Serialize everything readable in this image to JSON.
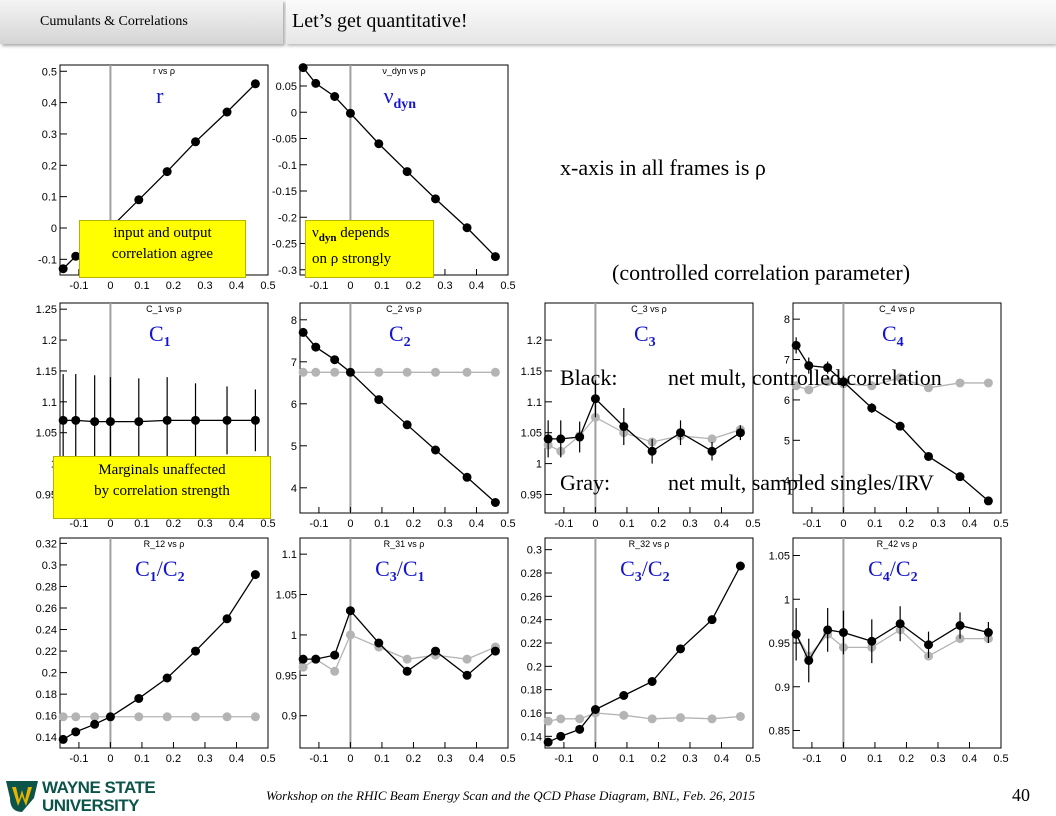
{
  "header": {
    "section": "Cumulants & Correlations",
    "title": "Let’s get quantitative!"
  },
  "notes": {
    "line1": "x-axis in all frames is ρ",
    "line2": "(controlled correlation parameter)",
    "line3_key": "Black:",
    "line3_val": "net mult, controlled correlation",
    "line4_key": "Gray:",
    "line4_val": "net mult, sampled singles/IRV"
  },
  "callouts": {
    "r_box": [
      "input and output",
      "correlation agree"
    ],
    "nu_box_l1_pre": "ν",
    "nu_box_l1_sub": "dyn",
    "nu_box_l1_post": " depends",
    "nu_box_l2": "on ρ strongly",
    "c1_box": [
      "Marginals unaffected",
      "by correlation strength"
    ]
  },
  "footer": {
    "text": "Workshop on the RHIC Beam Energy Scan and the QCD Phase Diagram, BNL, Feb. 26, 2015",
    "page": "40"
  },
  "logo": {
    "line1": "WAYNE STATE",
    "line2": "UNIVERSITY"
  },
  "colors": {
    "black_series": "#000000",
    "gray_series": "#b4b4b4",
    "label_blue": "#1515cc",
    "callout": "#ffff00"
  },
  "chart_data": [
    {
      "type": "line",
      "id": "r",
      "title": "r vs ρ",
      "label": "r",
      "xlim": [
        -0.16,
        0.5
      ],
      "ylim": [
        -0.15,
        0.52
      ],
      "xticks": [
        "-0.1",
        "0",
        "0.1",
        "0.2",
        "0.3",
        "0.4",
        "0.5"
      ],
      "yticks": [
        "-0.1",
        "0",
        "0.1",
        "0.2",
        "0.3",
        "0.4",
        "0.5"
      ],
      "series": [
        {
          "color": "black",
          "x": [
            -0.15,
            -0.11,
            -0.05,
            0,
            0.09,
            0.18,
            0.27,
            0.37,
            0.46
          ],
          "y": [
            -0.13,
            -0.09,
            -0.045,
            0.0,
            0.09,
            0.18,
            0.275,
            0.37,
            0.46
          ]
        }
      ]
    },
    {
      "type": "line",
      "id": "nu",
      "title": "ν_dyn vs ρ",
      "label": "ν",
      "label_sub": "dyn",
      "xlim": [
        -0.16,
        0.5
      ],
      "ylim": [
        -0.31,
        0.09
      ],
      "xticks": [
        "-0.1",
        "0",
        "0.1",
        "0.2",
        "0.3",
        "0.4",
        "0.5"
      ],
      "yticks": [
        "-0.3",
        "-0.25",
        "-0.2",
        "-0.15",
        "-0.1",
        "-0.05",
        "0",
        "0.05"
      ],
      "series": [
        {
          "color": "black",
          "x": [
            -0.15,
            -0.11,
            -0.05,
            0,
            0.09,
            0.18,
            0.27,
            0.37,
            0.46
          ],
          "y": [
            0.085,
            0.055,
            0.03,
            -0.002,
            -0.06,
            -0.113,
            -0.165,
            -0.22,
            -0.275
          ]
        }
      ]
    },
    {
      "type": "line",
      "id": "c1",
      "title": "C_1 vs ρ",
      "label": "C",
      "label_sub": "1",
      "xlim": [
        -0.16,
        0.5
      ],
      "ylim": [
        0.92,
        1.26
      ],
      "xticks": [
        "-0.1",
        "0",
        "0.1",
        "0.2",
        "0.3",
        "0.4",
        "0.5"
      ],
      "yticks": [
        "0.95",
        "1",
        "1.05",
        "1.1",
        "1.15",
        "1.2",
        "1.25"
      ],
      "series": [
        {
          "color": "black",
          "x": [
            -0.15,
            -0.11,
            -0.05,
            0,
            0.09,
            0.18,
            0.27,
            0.37,
            0.46
          ],
          "y": [
            1.07,
            1.07,
            1.068,
            1.068,
            1.068,
            1.07,
            1.07,
            1.07,
            1.07
          ],
          "err": [
            0.075,
            0.075,
            0.075,
            0.072,
            0.07,
            0.07,
            0.06,
            0.055,
            0.05
          ]
        }
      ]
    },
    {
      "type": "line",
      "id": "c2",
      "title": "C_2 vs ρ",
      "label": "C",
      "label_sub": "2",
      "xlim": [
        -0.16,
        0.5
      ],
      "ylim": [
        3.4,
        8.4
      ],
      "xticks": [
        "-0.1",
        "0",
        "0.1",
        "0.2",
        "0.3",
        "0.4",
        "0.5"
      ],
      "yticks": [
        "4",
        "5",
        "6",
        "7",
        "8"
      ],
      "series": [
        {
          "color": "gray",
          "x": [
            -0.15,
            -0.11,
            -0.05,
            0,
            0.09,
            0.18,
            0.27,
            0.37,
            0.46
          ],
          "y": [
            6.75,
            6.75,
            6.75,
            6.75,
            6.75,
            6.75,
            6.75,
            6.75,
            6.75
          ]
        },
        {
          "color": "black",
          "x": [
            -0.15,
            -0.11,
            -0.05,
            0,
            0.09,
            0.18,
            0.27,
            0.37,
            0.46
          ],
          "y": [
            7.7,
            7.35,
            7.05,
            6.75,
            6.1,
            5.5,
            4.9,
            4.25,
            3.65
          ]
        }
      ]
    },
    {
      "type": "line",
      "id": "c3",
      "title": "C_3 vs ρ",
      "label": "C",
      "label_sub": "3",
      "xlim": [
        -0.16,
        0.5
      ],
      "ylim": [
        0.92,
        1.26
      ],
      "xticks": [
        "-0.1",
        "0",
        "0.1",
        "0.2",
        "0.3",
        "0.4",
        "0.5"
      ],
      "yticks": [
        "0.95",
        "1",
        "1.05",
        "1.1",
        "1.15",
        "1.2"
      ],
      "series": [
        {
          "color": "gray",
          "x": [
            -0.15,
            -0.11,
            -0.05,
            0,
            0.09,
            0.18,
            0.27,
            0.37,
            0.46
          ],
          "y": [
            1.03,
            1.02,
            1.045,
            1.075,
            1.05,
            1.035,
            1.045,
            1.04,
            1.055
          ]
        },
        {
          "color": "black",
          "x": [
            -0.15,
            -0.11,
            -0.05,
            0,
            0.09,
            0.18,
            0.27,
            0.37,
            0.46
          ],
          "y": [
            1.04,
            1.04,
            1.043,
            1.105,
            1.06,
            1.02,
            1.05,
            1.02,
            1.05
          ],
          "err": [
            0.03,
            0.03,
            0.025,
            0.03,
            0.03,
            0.02,
            0.02,
            0.015,
            0.012
          ]
        }
      ]
    },
    {
      "type": "line",
      "id": "c4",
      "title": "C_4 vs ρ",
      "label": "C",
      "label_sub": "4",
      "xlim": [
        -0.16,
        0.5
      ],
      "ylim": [
        3.2,
        8.4
      ],
      "xticks": [
        "-0.1",
        "0",
        "0.1",
        "0.2",
        "0.3",
        "0.4",
        "0.5"
      ],
      "yticks": [
        "4",
        "5",
        "6",
        "7",
        "8"
      ],
      "series": [
        {
          "color": "gray",
          "x": [
            -0.15,
            -0.11,
            -0.05,
            0,
            0.09,
            0.18,
            0.27,
            0.37,
            0.46
          ],
          "y": [
            6.35,
            6.25,
            6.45,
            6.4,
            6.35,
            6.55,
            6.3,
            6.42,
            6.42
          ]
        },
        {
          "color": "black",
          "x": [
            -0.15,
            -0.11,
            -0.05,
            0,
            0.09,
            0.18,
            0.27,
            0.37,
            0.46
          ],
          "y": [
            7.35,
            6.85,
            6.8,
            6.45,
            5.8,
            5.35,
            4.6,
            4.1,
            3.5
          ],
          "err": [
            0.2,
            0.2,
            0.15,
            0.15,
            0.12,
            0.08,
            0.08,
            0.08,
            0.08
          ]
        }
      ]
    },
    {
      "type": "line",
      "id": "r12",
      "title": "R_12 vs ρ",
      "label": "C",
      "label_sub": "1",
      "label_mid": "/C",
      "label_sub2": "2",
      "xlim": [
        -0.16,
        0.5
      ],
      "ylim": [
        0.13,
        0.325
      ],
      "xticks": [
        "-0.1",
        "0",
        "0.1",
        "0.2",
        "0.3",
        "0.4",
        "0.5"
      ],
      "yticks": [
        "0.14",
        "0.16",
        "0.18",
        "0.2",
        "0.22",
        "0.24",
        "0.26",
        "0.28",
        "0.3",
        "0.32"
      ],
      "series": [
        {
          "color": "gray",
          "x": [
            -0.15,
            -0.11,
            -0.05,
            0,
            0.09,
            0.18,
            0.27,
            0.37,
            0.46
          ],
          "y": [
            0.159,
            0.159,
            0.159,
            0.159,
            0.159,
            0.159,
            0.159,
            0.159,
            0.159
          ]
        },
        {
          "color": "black",
          "x": [
            -0.15,
            -0.11,
            -0.05,
            0,
            0.09,
            0.18,
            0.27,
            0.37,
            0.46
          ],
          "y": [
            0.138,
            0.145,
            0.152,
            0.159,
            0.176,
            0.195,
            0.22,
            0.25,
            0.291
          ]
        }
      ]
    },
    {
      "type": "line",
      "id": "r31",
      "title": "R_31 vs ρ",
      "label": "C",
      "label_sub": "3",
      "label_mid": "/C",
      "label_sub2": "1",
      "xlim": [
        -0.16,
        0.5
      ],
      "ylim": [
        0.86,
        1.12
      ],
      "xticks": [
        "-0.1",
        "0",
        "0.1",
        "0.2",
        "0.3",
        "0.4",
        "0.5"
      ],
      "yticks": [
        "0.9",
        "0.95",
        "1",
        "1.05",
        "1.1"
      ],
      "series": [
        {
          "color": "gray",
          "x": [
            -0.15,
            -0.11,
            -0.05,
            0,
            0.09,
            0.18,
            0.27,
            0.37,
            0.46
          ],
          "y": [
            0.96,
            0.97,
            0.955,
            1.0,
            0.985,
            0.97,
            0.975,
            0.97,
            0.985
          ]
        },
        {
          "color": "black",
          "x": [
            -0.15,
            -0.11,
            -0.05,
            0,
            0.09,
            0.18,
            0.27,
            0.37,
            0.46
          ],
          "y": [
            0.97,
            0.97,
            0.975,
            1.03,
            0.99,
            0.955,
            0.98,
            0.95,
            0.98
          ]
        }
      ]
    },
    {
      "type": "line",
      "id": "r32",
      "title": "R_32 vs ρ",
      "label": "C",
      "label_sub": "3",
      "label_mid": "/C",
      "label_sub2": "2",
      "xlim": [
        -0.16,
        0.5
      ],
      "ylim": [
        0.13,
        0.31
      ],
      "xticks": [
        "-0.1",
        "0",
        "0.1",
        "0.2",
        "0.3",
        "0.4",
        "0.5"
      ],
      "yticks": [
        "0.14",
        "0.16",
        "0.18",
        "0.2",
        "0.22",
        "0.24",
        "0.26",
        "0.28",
        "0.3"
      ],
      "series": [
        {
          "color": "gray",
          "x": [
            -0.15,
            -0.11,
            -0.05,
            0,
            0.09,
            0.18,
            0.27,
            0.37,
            0.46
          ],
          "y": [
            0.153,
            0.155,
            0.155,
            0.16,
            0.158,
            0.155,
            0.156,
            0.155,
            0.157
          ]
        },
        {
          "color": "black",
          "x": [
            -0.15,
            -0.11,
            -0.05,
            0,
            0.09,
            0.18,
            0.27,
            0.37,
            0.46
          ],
          "y": [
            0.135,
            0.14,
            0.146,
            0.163,
            0.175,
            0.187,
            0.215,
            0.24,
            0.286
          ]
        }
      ]
    },
    {
      "type": "line",
      "id": "r42",
      "title": "R_42 vs ρ",
      "label": "C",
      "label_sub": "4",
      "label_mid": "/C",
      "label_sub2": "2",
      "xlim": [
        -0.16,
        0.5
      ],
      "ylim": [
        0.83,
        1.07
      ],
      "xticks": [
        "-0.1",
        "0",
        "0.1",
        "0.2",
        "0.3",
        "0.4",
        "0.5"
      ],
      "yticks": [
        "0.85",
        "0.9",
        "0.95",
        "1",
        "1.05"
      ],
      "series": [
        {
          "color": "gray",
          "x": [
            -0.15,
            -0.11,
            -0.05,
            0,
            0.09,
            0.18,
            0.27,
            0.37,
            0.46
          ],
          "y": [
            0.96,
            0.935,
            0.96,
            0.945,
            0.945,
            0.965,
            0.935,
            0.955,
            0.955
          ]
        },
        {
          "color": "black",
          "x": [
            -0.15,
            -0.11,
            -0.05,
            0,
            0.09,
            0.18,
            0.27,
            0.37,
            0.46
          ],
          "y": [
            0.96,
            0.93,
            0.965,
            0.962,
            0.952,
            0.972,
            0.948,
            0.97,
            0.962
          ],
          "err": [
            0.03,
            0.025,
            0.025,
            0.025,
            0.025,
            0.02,
            0.015,
            0.015,
            0.012
          ]
        }
      ]
    }
  ]
}
